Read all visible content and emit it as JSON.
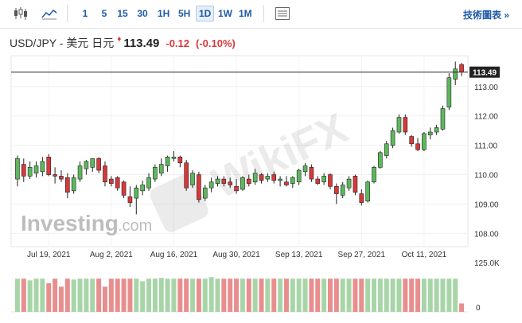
{
  "toolbar": {
    "intervals": [
      "1",
      "5",
      "15",
      "30",
      "1H",
      "5H",
      "1D",
      "1W",
      "1M"
    ],
    "active_interval": "1D",
    "technical_chart_link": "技術圖表 »"
  },
  "quote": {
    "name": "USD/JPY - 美元 日元",
    "price": "113.49",
    "change": "-0.12",
    "change_pct": "(-0.10%)"
  },
  "colors": {
    "up": "#5cb85c",
    "down": "#d9383a",
    "vol_up": "#a8d5a8",
    "vol_down": "#e88e8e",
    "link": "#1f5aa6"
  },
  "watermarks": {
    "investing": "Investing",
    "investing_suffix": ".com",
    "wikifx": "WikiFX"
  },
  "chart_data": {
    "type": "candlestick",
    "title": "USD/JPY - 美元 日元",
    "x_tick_labels": [
      "Jul 19, 2021",
      "Aug 2, 2021",
      "Aug 16, 2021",
      "Aug 30, 2021",
      "Sep 13, 2021",
      "Sep 27, 2021",
      "Oct 11, 2021"
    ],
    "y_ticks": [
      108.0,
      109.0,
      110.0,
      111.0,
      112.0,
      113.0
    ],
    "y_tick_labels": [
      "108.00",
      "109.00",
      "110.00",
      "111.00",
      "112.00",
      "113.00"
    ],
    "ylim": [
      107.55,
      114.05
    ],
    "last_price": "113.49",
    "volume_axis_labels": [
      "125.0K",
      "0"
    ],
    "candles": [
      {
        "o": 109.85,
        "h": 110.65,
        "l": 109.6,
        "c": 110.55
      },
      {
        "o": 110.35,
        "h": 110.55,
        "l": 109.75,
        "c": 109.95
      },
      {
        "o": 109.95,
        "h": 110.45,
        "l": 109.85,
        "c": 110.25
      },
      {
        "o": 110.05,
        "h": 110.45,
        "l": 109.9,
        "c": 110.3
      },
      {
        "o": 110.1,
        "h": 110.6,
        "l": 109.95,
        "c": 110.45
      },
      {
        "o": 110.6,
        "h": 110.7,
        "l": 109.95,
        "c": 110.0
      },
      {
        "o": 110.0,
        "h": 110.25,
        "l": 109.7,
        "c": 109.95
      },
      {
        "o": 109.95,
        "h": 110.15,
        "l": 109.75,
        "c": 109.85
      },
      {
        "o": 109.9,
        "h": 110.05,
        "l": 109.2,
        "c": 109.4
      },
      {
        "o": 109.45,
        "h": 110.0,
        "l": 109.35,
        "c": 109.9
      },
      {
        "o": 109.85,
        "h": 110.45,
        "l": 109.75,
        "c": 110.3
      },
      {
        "o": 110.2,
        "h": 110.5,
        "l": 110.0,
        "c": 110.45
      },
      {
        "o": 110.25,
        "h": 110.55,
        "l": 110.1,
        "c": 110.55
      },
      {
        "o": 110.55,
        "h": 110.6,
        "l": 110.05,
        "c": 110.15
      },
      {
        "o": 110.3,
        "h": 110.45,
        "l": 109.6,
        "c": 109.75
      },
      {
        "o": 109.85,
        "h": 109.95,
        "l": 109.6,
        "c": 109.7
      },
      {
        "o": 109.9,
        "h": 109.95,
        "l": 109.45,
        "c": 109.55
      },
      {
        "o": 109.75,
        "h": 109.8,
        "l": 109.2,
        "c": 109.3
      },
      {
        "o": 109.25,
        "h": 109.6,
        "l": 108.9,
        "c": 109.05
      },
      {
        "o": 109.2,
        "h": 109.65,
        "l": 108.65,
        "c": 109.55
      },
      {
        "o": 109.45,
        "h": 109.8,
        "l": 109.3,
        "c": 109.65
      },
      {
        "o": 109.55,
        "h": 110.05,
        "l": 109.45,
        "c": 109.9
      },
      {
        "o": 109.85,
        "h": 110.35,
        "l": 109.75,
        "c": 110.25
      },
      {
        "o": 110.05,
        "h": 110.55,
        "l": 109.95,
        "c": 110.35
      },
      {
        "o": 110.3,
        "h": 110.65,
        "l": 110.1,
        "c": 110.6
      },
      {
        "o": 110.55,
        "h": 110.8,
        "l": 110.45,
        "c": 110.6
      },
      {
        "o": 110.6,
        "h": 110.65,
        "l": 110.25,
        "c": 110.4
      },
      {
        "o": 110.4,
        "h": 110.5,
        "l": 109.45,
        "c": 109.55
      },
      {
        "o": 109.65,
        "h": 110.15,
        "l": 109.55,
        "c": 110.05
      },
      {
        "o": 110.0,
        "h": 110.1,
        "l": 109.05,
        "c": 109.15
      },
      {
        "o": 109.2,
        "h": 109.65,
        "l": 109.1,
        "c": 109.55
      },
      {
        "o": 109.55,
        "h": 109.9,
        "l": 109.4,
        "c": 109.75
      },
      {
        "o": 109.7,
        "h": 109.95,
        "l": 109.6,
        "c": 109.85
      },
      {
        "o": 109.85,
        "h": 109.95,
        "l": 109.6,
        "c": 109.7
      },
      {
        "o": 109.75,
        "h": 109.9,
        "l": 109.55,
        "c": 109.65
      },
      {
        "o": 109.6,
        "h": 109.85,
        "l": 109.35,
        "c": 109.45
      },
      {
        "o": 109.5,
        "h": 109.95,
        "l": 109.45,
        "c": 109.9
      },
      {
        "o": 109.85,
        "h": 110.0,
        "l": 109.6,
        "c": 109.7
      },
      {
        "o": 109.75,
        "h": 110.2,
        "l": 109.65,
        "c": 110.05
      },
      {
        "o": 110.0,
        "h": 110.05,
        "l": 109.7,
        "c": 109.8
      },
      {
        "o": 109.85,
        "h": 110.05,
        "l": 109.75,
        "c": 109.95
      },
      {
        "o": 110.0,
        "h": 110.1,
        "l": 109.7,
        "c": 109.8
      },
      {
        "o": 109.8,
        "h": 109.95,
        "l": 109.6,
        "c": 109.85
      },
      {
        "o": 109.75,
        "h": 109.95,
        "l": 109.6,
        "c": 109.65
      },
      {
        "o": 109.7,
        "h": 109.95,
        "l": 109.55,
        "c": 109.9
      },
      {
        "o": 109.75,
        "h": 110.2,
        "l": 109.65,
        "c": 110.15
      },
      {
        "o": 110.1,
        "h": 110.4,
        "l": 109.95,
        "c": 110.3
      },
      {
        "o": 110.25,
        "h": 110.35,
        "l": 109.75,
        "c": 109.85
      },
      {
        "o": 109.85,
        "h": 109.95,
        "l": 109.65,
        "c": 109.7
      },
      {
        "o": 109.75,
        "h": 110.05,
        "l": 109.65,
        "c": 109.95
      },
      {
        "o": 110.0,
        "h": 110.05,
        "l": 109.5,
        "c": 109.6
      },
      {
        "o": 109.6,
        "h": 109.7,
        "l": 109.0,
        "c": 109.35
      },
      {
        "o": 109.3,
        "h": 109.75,
        "l": 109.2,
        "c": 109.65
      },
      {
        "o": 109.55,
        "h": 109.95,
        "l": 109.45,
        "c": 109.85
      },
      {
        "o": 109.95,
        "h": 110.0,
        "l": 109.3,
        "c": 109.4
      },
      {
        "o": 109.35,
        "h": 109.5,
        "l": 108.95,
        "c": 109.05
      },
      {
        "o": 109.1,
        "h": 109.8,
        "l": 109.05,
        "c": 109.75
      },
      {
        "o": 109.75,
        "h": 110.3,
        "l": 109.7,
        "c": 110.25
      },
      {
        "o": 110.25,
        "h": 110.8,
        "l": 110.2,
        "c": 110.75
      },
      {
        "o": 110.65,
        "h": 111.15,
        "l": 110.55,
        "c": 111.05
      },
      {
        "o": 111.0,
        "h": 111.6,
        "l": 110.9,
        "c": 111.5
      },
      {
        "o": 111.45,
        "h": 112.05,
        "l": 111.4,
        "c": 111.95
      },
      {
        "o": 111.95,
        "h": 112.05,
        "l": 111.35,
        "c": 111.45
      },
      {
        "o": 111.3,
        "h": 111.35,
        "l": 110.95,
        "c": 111.05
      },
      {
        "o": 111.05,
        "h": 111.25,
        "l": 110.8,
        "c": 110.85
      },
      {
        "o": 110.85,
        "h": 111.45,
        "l": 110.8,
        "c": 111.4
      },
      {
        "o": 111.35,
        "h": 111.6,
        "l": 111.2,
        "c": 111.45
      },
      {
        "o": 111.45,
        "h": 111.7,
        "l": 111.35,
        "c": 111.6
      },
      {
        "o": 111.55,
        "h": 112.35,
        "l": 111.5,
        "c": 112.25
      },
      {
        "o": 112.3,
        "h": 113.45,
        "l": 112.2,
        "c": 113.3
      },
      {
        "o": 113.25,
        "h": 113.85,
        "l": 113.05,
        "c": 113.6
      },
      {
        "o": 113.75,
        "h": 113.8,
        "l": 113.35,
        "c": 113.49
      }
    ],
    "volume": [
      79,
      79,
      75,
      79,
      79,
      68,
      79,
      60,
      79,
      77,
      79,
      79,
      79,
      79,
      60,
      79,
      79,
      79,
      79,
      79,
      73,
      79,
      79,
      81,
      79,
      79,
      79,
      79,
      79,
      79,
      79,
      83,
      79,
      79,
      79,
      79,
      79,
      79,
      79,
      79,
      79,
      79,
      79,
      79,
      79,
      79,
      79,
      79,
      79,
      79,
      79,
      79,
      79,
      79,
      79,
      79,
      79,
      79,
      79,
      79,
      79,
      79,
      79,
      79,
      79,
      79,
      79,
      79,
      79,
      79,
      79,
      20
    ]
  }
}
